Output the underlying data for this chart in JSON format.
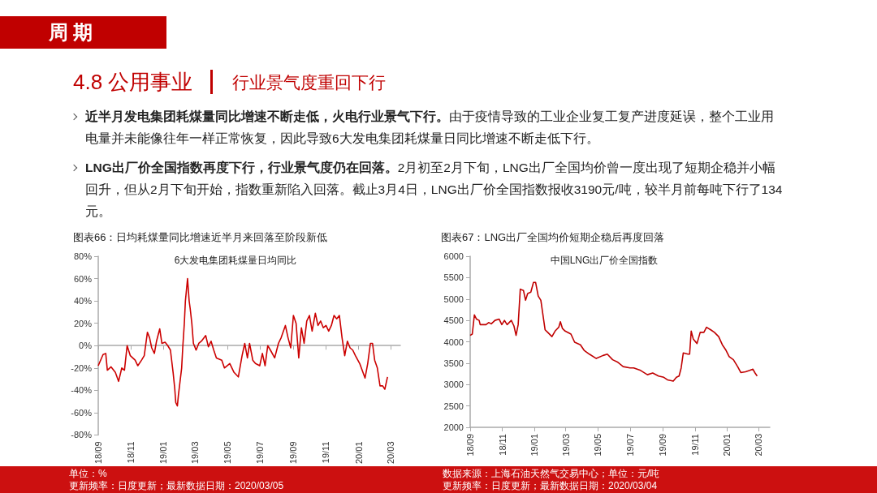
{
  "chart_data": [
    {
      "type": "other",
      "title": "4.8 公用事业",
      "subtitle": "行业景气度重回下行",
      "annotations": [
        "周期",
        "近半月发电集团耗煤量同比增速不断走低，火电行业景气下行。",
        "由于疫情导致的工业企业复工复产进度延误，整个工业用电量并未能像往年一样正常恢复，因此导致6大发电集团耗煤量日同比增速不断走低下行。",
        "LNG出厂价全国指数再度下行，行业景气度仍在回落。",
        "2月初至2月下旬，LNG出厂全国均价曾一度出现了短期企稳并小幅回升，但从2月下旬开始，指数重新陷入回落。截止3月4日，LNG出厂价全国指数报收3190元/吨，较半月前每吨下行了134元。"
      ]
    },
    {
      "type": "line",
      "title": "图表66：日均耗煤量同比增速近半月来回落至阶段新低",
      "subtitle": "6大发电集团耗煤量日均同比",
      "marker": "none",
      "annotations": [
        "单位：%",
        "更新频率：日度更新；最新数据日期：2020/03/05"
      ],
      "x": [
        "2018-09-01",
        "2018-09-10",
        "2018-09-15",
        "2018-09-18",
        "2018-09-25",
        "2018-10-03",
        "2018-10-09",
        "2018-10-15",
        "2018-10-20",
        "2018-10-25",
        "2018-10-31",
        "2018-11-09",
        "2018-11-14",
        "2018-11-21",
        "2018-11-26",
        "2018-12-02",
        "2018-12-06",
        "2018-12-10",
        "2018-12-15",
        "2018-12-19",
        "2018-12-25",
        "2018-12-29",
        "2019-01-04",
        "2019-01-09",
        "2019-01-14",
        "2019-01-19",
        "2019-01-22",
        "2019-01-24",
        "2019-01-27",
        "2019-01-29",
        "2019-02-04",
        "2019-02-06",
        "2019-02-09",
        "2019-02-11",
        "2019-02-15",
        "2019-02-18",
        "2019-02-20",
        "2019-02-23",
        "2019-02-26",
        "2019-03-03",
        "2019-03-08",
        "2019-03-13",
        "2019-03-21",
        "2019-03-26",
        "2019-03-31",
        "2019-04-05",
        "2019-04-10",
        "2019-04-20",
        "2019-04-25",
        "2019-05-05",
        "2019-05-13",
        "2019-05-21",
        "2019-05-28",
        "2019-06-02",
        "2019-06-07",
        "2019-06-11",
        "2019-06-17",
        "2019-06-22",
        "2019-06-30",
        "2019-07-05",
        "2019-07-10",
        "2019-07-15",
        "2019-07-20",
        "2019-07-28",
        "2019-08-04",
        "2019-08-09",
        "2019-08-17",
        "2019-08-22",
        "2019-08-27",
        "2019-09-01",
        "2019-09-06",
        "2019-09-11",
        "2019-09-16",
        "2019-09-21",
        "2019-09-26",
        "2019-10-01",
        "2019-10-06",
        "2019-10-12",
        "2019-10-17",
        "2019-10-22",
        "2019-10-27",
        "2019-11-01",
        "2019-11-06",
        "2019-11-11",
        "2019-11-16",
        "2019-11-21",
        "2019-11-26",
        "2019-12-01",
        "2019-12-06",
        "2019-12-11",
        "2019-12-16",
        "2019-12-21",
        "2019-12-26",
        "2020-01-03",
        "2020-01-13",
        "2020-01-18",
        "2020-01-23",
        "2020-01-27",
        "2020-01-31",
        "2020-02-05",
        "2020-02-10",
        "2020-02-15",
        "2020-02-19",
        "2020-02-24"
      ],
      "series": [
        {
          "color": "#cc0000",
          "values": [
            -18,
            -8,
            -7,
            -22,
            -19,
            -24,
            -32,
            -20,
            -22,
            0,
            -9,
            -13,
            -18,
            -13,
            -9,
            12,
            7,
            -2,
            -7,
            4,
            15,
            2,
            3,
            0,
            -4,
            -24,
            -38,
            -51,
            -54,
            -44,
            -20,
            -2,
            20,
            40,
            60,
            40,
            33,
            20,
            2,
            -4,
            2,
            4,
            9,
            -1,
            4,
            -4,
            -11,
            -13,
            -20,
            -16,
            -24,
            -28,
            -9,
            2,
            -11,
            2,
            -13,
            -16,
            -18,
            -7,
            -18,
            0,
            -4,
            -11,
            2,
            7,
            18,
            7,
            -2,
            27,
            20,
            -11,
            16,
            2,
            22,
            27,
            13,
            29,
            18,
            22,
            16,
            18,
            13,
            18,
            27,
            24,
            27,
            7,
            -9,
            4,
            -2,
            -4,
            -9,
            -16,
            -29,
            -16,
            2,
            2,
            -13,
            -20,
            -36,
            -36,
            -39,
            -28
          ]
        }
      ],
      "xlim": [
        "2018-09-01",
        "2020-03-19"
      ],
      "xticks": [
        {
          "value": "2018-09-01",
          "label": "18/09"
        },
        {
          "value": "2018-11-01",
          "label": "18/11"
        },
        {
          "value": "2019-01-01",
          "label": "19/01"
        },
        {
          "value": "2019-03-01",
          "label": "19/03"
        },
        {
          "value": "2019-05-01",
          "label": "19/05"
        },
        {
          "value": "2019-07-01",
          "label": "19/07"
        },
        {
          "value": "2019-09-01",
          "label": "19/09"
        },
        {
          "value": "2019-11-01",
          "label": "19/11"
        },
        {
          "value": "2020-01-01",
          "label": "20/01"
        },
        {
          "value": "2020-03-01",
          "label": "20/03"
        }
      ],
      "ylim": [
        -80,
        80
      ],
      "yticks": [
        {
          "value": -80,
          "label": "-80%"
        },
        {
          "value": -60,
          "label": "-60%"
        },
        {
          "value": -40,
          "label": "-40%"
        },
        {
          "value": -20,
          "label": "-20%"
        },
        {
          "value": 0,
          "label": "0%"
        },
        {
          "value": 20,
          "label": "20%"
        },
        {
          "value": 40,
          "label": "40%"
        },
        {
          "value": 60,
          "label": "60%"
        },
        {
          "value": 80,
          "label": "80%"
        }
      ]
    },
    {
      "type": "line",
      "title": "图表67：LNG出厂全国均价短期企稳后再度回落",
      "subtitle": "中国LNG出厂价全国指数",
      "marker": "none",
      "annotations": [
        "数据来源：上海石油天然气交易中心；单位：元/吨",
        "更新频率：日度更新；最新数据日期：2020/03/04"
      ],
      "x": [
        "2018-09-01",
        "2018-09-05",
        "2018-09-09",
        "2018-09-13",
        "2018-09-18",
        "2018-09-20",
        "2018-10-01",
        "2018-10-06",
        "2018-10-11",
        "2018-10-18",
        "2018-10-26",
        "2018-10-31",
        "2018-11-05",
        "2018-11-10",
        "2018-11-18",
        "2018-11-23",
        "2018-11-27",
        "2018-12-01",
        "2018-12-05",
        "2018-12-11",
        "2018-12-15",
        "2018-12-19",
        "2018-12-25",
        "2018-12-30",
        "2019-01-03",
        "2019-01-08",
        "2019-01-13",
        "2019-01-21",
        "2019-01-26",
        "2019-02-03",
        "2019-02-09",
        "2019-02-16",
        "2019-02-19",
        "2019-02-23",
        "2019-02-28",
        "2019-03-11",
        "2019-03-18",
        "2019-03-29",
        "2019-04-05",
        "2019-04-15",
        "2019-04-28",
        "2019-05-11",
        "2019-05-19",
        "2019-05-29",
        "2019-06-08",
        "2019-06-18",
        "2019-07-01",
        "2019-07-08",
        "2019-07-21",
        "2019-08-03",
        "2019-08-13",
        "2019-08-24",
        "2019-09-03",
        "2019-09-10",
        "2019-09-21",
        "2019-09-27",
        "2019-10-02",
        "2019-10-06",
        "2019-10-10",
        "2019-10-19",
        "2019-10-22",
        "2019-10-25",
        "2019-10-29",
        "2019-11-05",
        "2019-11-11",
        "2019-11-18",
        "2019-11-23",
        "2019-12-01",
        "2019-12-08",
        "2019-12-16",
        "2019-12-23",
        "2019-12-30",
        "2020-01-05",
        "2020-01-13",
        "2020-01-21",
        "2020-01-27",
        "2020-02-05",
        "2020-02-13",
        "2020-02-19",
        "2020-02-23",
        "2020-02-27"
      ],
      "series": [
        {
          "color": "#c00000",
          "values": [
            4150,
            4180,
            4630,
            4530,
            4500,
            4400,
            4400,
            4450,
            4420,
            4500,
            4530,
            4400,
            4500,
            4400,
            4500,
            4370,
            4150,
            4400,
            5230,
            5200,
            4970,
            5130,
            5160,
            5390,
            5390,
            5070,
            4970,
            4280,
            4220,
            4120,
            4250,
            4340,
            4470,
            4310,
            4250,
            4180,
            3990,
            3930,
            3800,
            3710,
            3610,
            3680,
            3710,
            3580,
            3520,
            3420,
            3390,
            3390,
            3330,
            3230,
            3270,
            3200,
            3170,
            3110,
            3080,
            3170,
            3200,
            3390,
            3740,
            3710,
            3710,
            4250,
            4060,
            3960,
            4220,
            4220,
            4340,
            4280,
            4220,
            4120,
            3930,
            3800,
            3650,
            3580,
            3420,
            3280,
            3300,
            3330,
            3360,
            3270,
            3200
          ]
        }
      ],
      "xlim": [
        "2018-09-01",
        "2020-03-22"
      ],
      "xticks": [
        {
          "value": "2018-09-01",
          "label": "18/09"
        },
        {
          "value": "2018-11-01",
          "label": "18/11"
        },
        {
          "value": "2019-01-01",
          "label": "19/01"
        },
        {
          "value": "2019-03-01",
          "label": "19/03"
        },
        {
          "value": "2019-05-01",
          "label": "19/05"
        },
        {
          "value": "2019-07-01",
          "label": "19/07"
        },
        {
          "value": "2019-09-01",
          "label": "19/09"
        },
        {
          "value": "2019-11-01",
          "label": "19/11"
        },
        {
          "value": "2020-01-01",
          "label": "20/01"
        },
        {
          "value": "2020-03-01",
          "label": "20/03"
        }
      ],
      "ylim": [
        2000,
        6000
      ],
      "yticks": [
        2000,
        2500,
        3000,
        3500,
        4000,
        4500,
        5000,
        5500,
        6000
      ]
    }
  ]
}
